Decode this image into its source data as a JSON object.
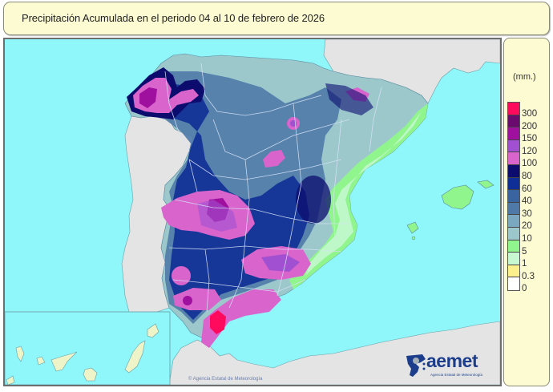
{
  "title": "Precipitación Acumulada en el periodo 04 al 10 de febrero de 2026",
  "legend": {
    "unit": "(mm.)",
    "swatches": [
      {
        "color": "#ff0a5c"
      },
      {
        "color": "#6a0a6e"
      },
      {
        "color": "#a0109e"
      },
      {
        "color": "#a050d0"
      },
      {
        "color": "#d864cc"
      },
      {
        "color": "#0c0c6e"
      },
      {
        "color": "#0f2f96"
      },
      {
        "color": "#3a64a0"
      },
      {
        "color": "#4f7aa8"
      },
      {
        "color": "#7aa8c0"
      },
      {
        "color": "#9cc8cc"
      },
      {
        "color": "#90f58c"
      },
      {
        "color": "#c8f8d2"
      },
      {
        "color": "#fcf08c"
      },
      {
        "color": "#ffffff"
      }
    ],
    "labels": [
      "300",
      "200",
      "150",
      "120",
      "100",
      "80",
      "60",
      "40",
      "30",
      "20",
      "10",
      "5",
      "1",
      "0.3",
      "0"
    ]
  },
  "colors": {
    "sea": "#8ff6f9",
    "land_other": "#e4e4e4",
    "border": "#d6e2f6"
  },
  "logo": {
    "name": "aemet",
    "subtitle": "Agencia Estatal de Meteorología"
  },
  "copyright": "© Agencia Estatal de Meteorología",
  "map": {
    "region": "España peninsular, Baleares y Canarias",
    "inset": "Canarias"
  }
}
